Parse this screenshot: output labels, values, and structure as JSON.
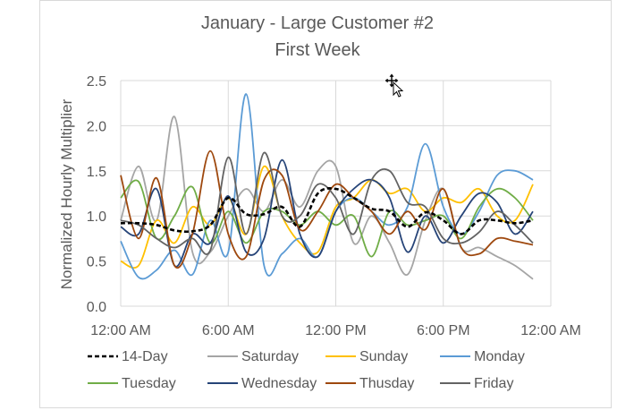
{
  "chart_data": {
    "type": "line",
    "title": [
      "January - Large Customer #2",
      "First Week"
    ],
    "ylabel": "Normalized Hourly Multiplier",
    "xlabel": "",
    "ylim": [
      0,
      2.5
    ],
    "y_ticks": [
      "0.0",
      "0.5",
      "1.0",
      "1.5",
      "2.0",
      "2.5"
    ],
    "x_tick_labels": [
      "12:00 AM",
      "6:00 AM",
      "12:00 PM",
      "6:00 PM",
      "12:00 AM"
    ],
    "x_hours": [
      0,
      1,
      2,
      3,
      4,
      5,
      6,
      7,
      8,
      9,
      10,
      11,
      12,
      13,
      14,
      15,
      16,
      17,
      18,
      19,
      20,
      21,
      22,
      23
    ],
    "grid": "both",
    "legend_position": "bottom",
    "series": [
      {
        "name": "14-Day",
        "color": "#000000",
        "dash": true,
        "values": [
          0.92,
          0.92,
          0.9,
          0.84,
          0.83,
          0.9,
          1.2,
          1.02,
          1.02,
          1.1,
          0.88,
          1.25,
          1.3,
          1.2,
          1.08,
          1.05,
          0.88,
          1.04,
          0.95,
          0.8,
          0.95,
          0.95,
          0.92,
          0.95
        ]
      },
      {
        "name": "Saturday",
        "color": "#a5a5a5",
        "values": [
          0.95,
          1.55,
          0.95,
          2.1,
          0.6,
          0.6,
          1.0,
          1.3,
          1.05,
          1.4,
          1.1,
          1.5,
          1.55,
          0.7,
          1.0,
          0.7,
          0.35,
          0.95,
          1.3,
          0.65,
          0.65,
          0.55,
          0.45,
          0.3
        ]
      },
      {
        "name": "Sunday",
        "color": "#ffc000",
        "values": [
          0.5,
          0.45,
          0.95,
          0.7,
          1.1,
          0.9,
          1.2,
          0.8,
          1.55,
          1.0,
          0.7,
          0.6,
          1.1,
          1.2,
          1.4,
          1.25,
          1.3,
          1.05,
          1.2,
          1.15,
          1.3,
          1.0,
          0.95,
          1.35
        ]
      },
      {
        "name": "Monday",
        "color": "#5b9bd5",
        "values": [
          0.72,
          0.32,
          0.4,
          0.62,
          0.35,
          0.95,
          0.6,
          2.35,
          0.45,
          0.58,
          0.75,
          0.55,
          1.05,
          1.2,
          1.05,
          0.9,
          1.1,
          1.8,
          1.1,
          0.8,
          1.05,
          1.45,
          1.5,
          1.4
        ]
      },
      {
        "name": "Tuesday",
        "color": "#70ad47",
        "values": [
          1.2,
          1.38,
          0.75,
          1.0,
          1.32,
          0.7,
          1.05,
          0.7,
          1.05,
          1.05,
          0.9,
          1.05,
          0.9,
          1.0,
          0.55,
          1.05,
          0.9,
          0.95,
          1.0,
          0.75,
          1.1,
          1.3,
          1.2,
          0.95
        ]
      },
      {
        "name": "Wednesday",
        "color": "#264478",
        "values": [
          0.88,
          0.8,
          1.3,
          0.45,
          0.8,
          0.7,
          1.22,
          0.6,
          0.75,
          1.62,
          0.8,
          0.55,
          1.05,
          1.3,
          1.4,
          1.2,
          0.6,
          1.0,
          0.7,
          1.0,
          1.25,
          1.15,
          0.8,
          1.05
        ]
      },
      {
        "name": "Thusday",
        "color": "#9e480e",
        "values": [
          1.45,
          0.75,
          1.42,
          0.45,
          0.8,
          1.72,
          0.8,
          0.55,
          1.4,
          1.45,
          0.85,
          1.05,
          1.35,
          1.2,
          1.05,
          0.8,
          1.05,
          0.85,
          1.3,
          0.65,
          0.58,
          0.75,
          0.72,
          0.68
        ]
      },
      {
        "name": "Friday",
        "color": "#636363",
        "values": [
          0.95,
          0.9,
          0.75,
          0.65,
          0.75,
          0.62,
          1.65,
          0.8,
          1.7,
          1.0,
          1.0,
          1.35,
          1.2,
          0.8,
          1.4,
          1.5,
          1.15,
          1.1,
          0.75,
          0.7,
          0.82,
          1.05,
          0.9,
          0.7
        ]
      }
    ]
  }
}
